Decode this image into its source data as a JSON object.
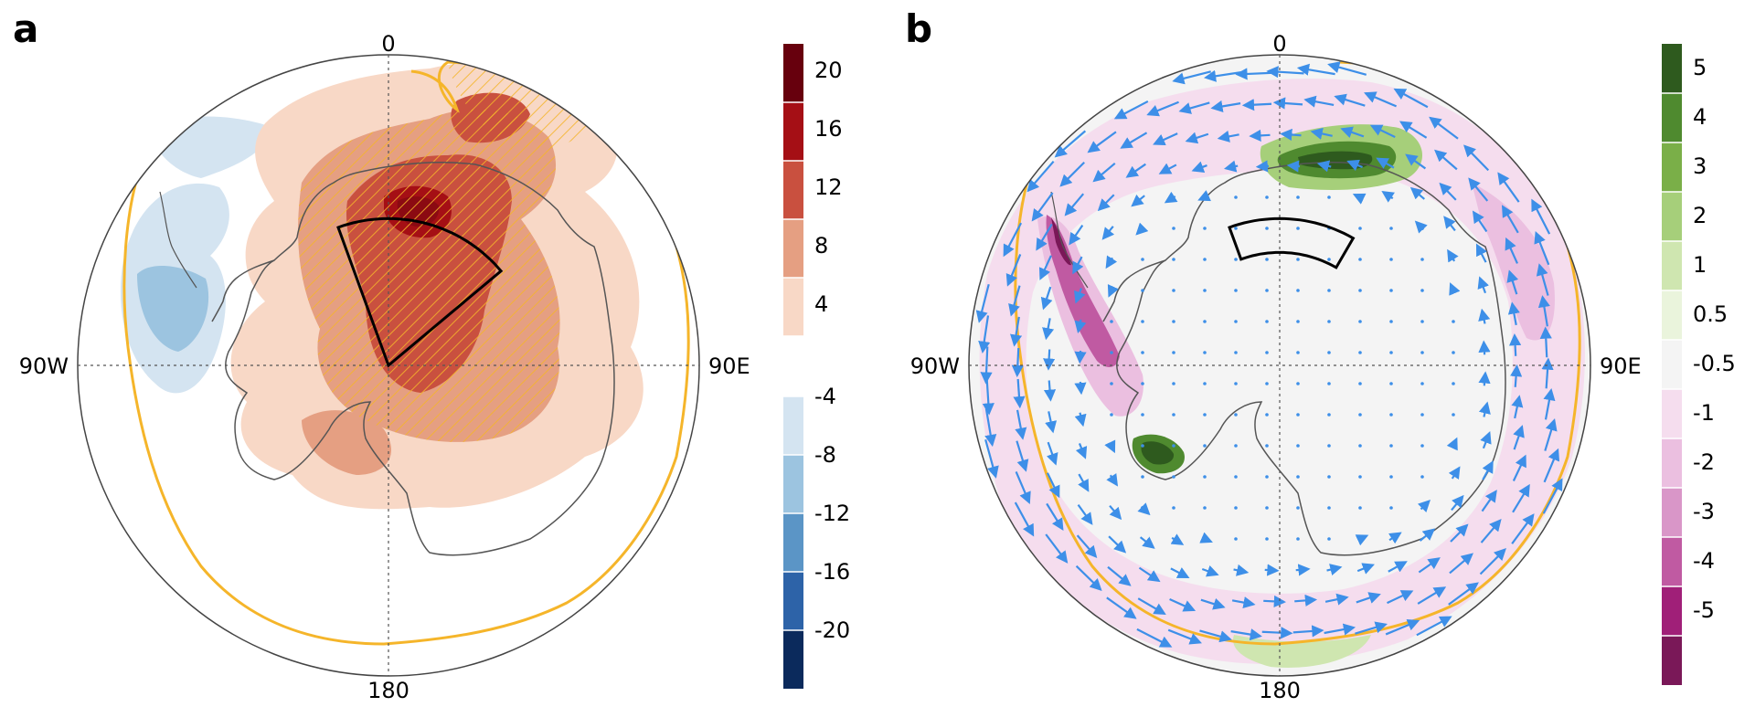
{
  "panels": [
    {
      "id": "a",
      "label": "a",
      "geo_labels": {
        "top": "0",
        "bottom": "180",
        "left": "90W",
        "right": "90E"
      },
      "colorbar": {
        "positive": {
          "ticks": [
            "20",
            "16",
            "12",
            "8",
            "4"
          ],
          "colors": [
            "#67000d",
            "#a50f15",
            "#c9503f",
            "#e59f82",
            "#f8d8c6"
          ]
        },
        "negative": {
          "ticks": [
            "-4",
            "-8",
            "-12",
            "-16",
            "-20"
          ],
          "colors": [
            "#d4e4f1",
            "#9cc4e0",
            "#5b95c6",
            "#2d63a8",
            "#0b2a5c"
          ]
        }
      },
      "sector_box": {
        "lon_start": -20,
        "lon_end": 50,
        "lat_outer": -64,
        "lat_inner": -90
      }
    },
    {
      "id": "b",
      "label": "b",
      "geo_labels": {
        "top": "0",
        "bottom": "180",
        "left": "90W",
        "right": "90E"
      },
      "colorbar": {
        "ticks": [
          "5",
          "4",
          "3",
          "2",
          "1",
          "0.5",
          "-0.5",
          "-1",
          "-2",
          "-3",
          "-4",
          "-5"
        ],
        "colors": [
          "#2e5a1e",
          "#4f8a2f",
          "#7aaf48",
          "#a6cf7a",
          "#cfe6b0",
          "#eaf4dc",
          "#f4f4f4",
          "#f5ddee",
          "#ebbfe0",
          "#d996c8",
          "#c05aa2",
          "#a01f78",
          "#7a1858"
        ]
      },
      "sector_box": {
        "lon_start": -20,
        "lon_end": 30,
        "lat_outer": -64,
        "lat_inner": -70
      },
      "vector_color": "#3d8fe8"
    }
  ],
  "colors": {
    "contour_line": "#f5b52a",
    "coastline": "#555555",
    "box": "#000000",
    "hatch": "#f5b52a"
  }
}
